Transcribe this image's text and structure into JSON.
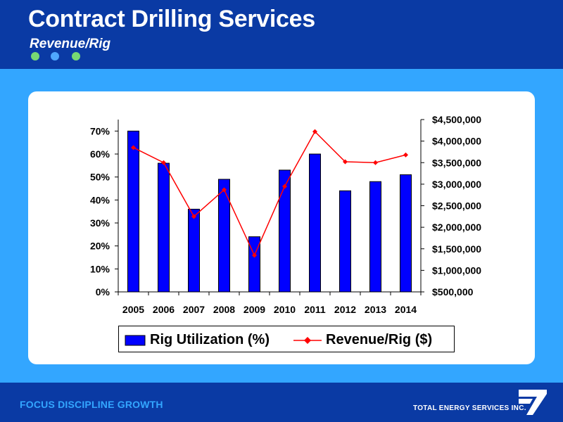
{
  "header": {
    "title": "Contract Drilling Services",
    "subtitle": "Revenue/Rig",
    "dot_colors": [
      "#77d873",
      "#4fa8ff",
      "#77d873"
    ]
  },
  "footer": {
    "tagline": "FOCUS  DISCIPLINE  GROWTH",
    "company": "TOTAL ENERGY SERVICES INC."
  },
  "colors": {
    "background": "#33a6ff",
    "header": "#0a3aa4",
    "bar_fill": "#0000ff",
    "line": "#ff0000"
  },
  "chart_data": {
    "type": "bar",
    "categories": [
      "2005",
      "2006",
      "2007",
      "2008",
      "2009",
      "2010",
      "2011",
      "2012",
      "2013",
      "2014"
    ],
    "series": [
      {
        "name": "Rig Utilization (%)",
        "type": "bar",
        "axis": "left",
        "values": [
          70,
          56,
          36,
          49,
          24,
          53,
          60,
          44,
          48,
          51
        ]
      },
      {
        "name": "Revenue/Rig ($)",
        "type": "line",
        "axis": "right",
        "values": [
          3850000,
          3500000,
          2250000,
          2870000,
          1350000,
          2950000,
          4220000,
          3520000,
          3500000,
          3680000
        ]
      }
    ],
    "y_left": {
      "min": 0,
      "max": 75,
      "ticks": [
        0,
        10,
        20,
        30,
        40,
        50,
        60,
        70
      ],
      "tick_labels": [
        "0%",
        "10%",
        "20%",
        "30%",
        "40%",
        "50%",
        "60%",
        "70%"
      ]
    },
    "y_right": {
      "min": 500000,
      "max": 4500000,
      "ticks": [
        500000,
        1000000,
        1500000,
        2000000,
        2500000,
        3000000,
        3500000,
        4000000,
        4500000
      ],
      "tick_labels": [
        "$500,000",
        "$1,000,000",
        "$1,500,000",
        "$2,000,000",
        "$2,500,000",
        "$3,000,000",
        "$3,500,000",
        "$4,000,000",
        "$4,500,000"
      ]
    },
    "legend_position": "bottom",
    "grid": false
  }
}
